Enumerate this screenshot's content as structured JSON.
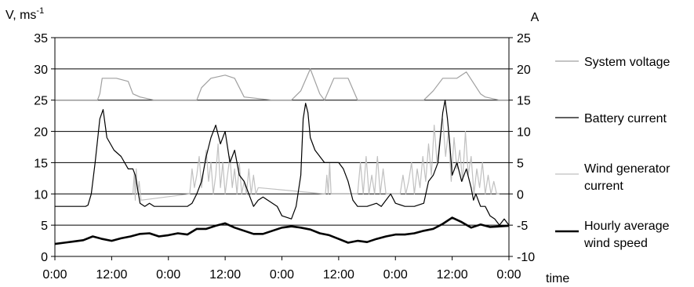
{
  "chart_data": {
    "type": "line",
    "title": "",
    "left_axis_label": "V, ms-1",
    "left_axis_label_main": "V, ms",
    "left_axis_label_sup": "-1",
    "right_axis_label": "A",
    "xlabel": "time",
    "left_ylim": [
      0,
      35
    ],
    "left_yticks": [
      "0",
      "5",
      "10",
      "15",
      "20",
      "25",
      "30",
      "35"
    ],
    "right_ylim": [
      -10,
      25
    ],
    "right_yticks": [
      "-10",
      "-5",
      "0",
      "5",
      "10",
      "15",
      "20",
      "25"
    ],
    "xlim_hours": [
      0,
      96
    ],
    "x_tick_labels": [
      "0:00",
      "12:00",
      "0:00",
      "12:00",
      "0:00",
      "12:00",
      "0:00",
      "12:00",
      "0:00"
    ],
    "grid": "horizontal",
    "legend_position": "right",
    "legend": [
      {
        "label_lines": [
          "System voltage"
        ],
        "color": "#a0a0a0",
        "width": 1.2
      },
      {
        "label_lines": [
          "Battery current"
        ],
        "color": "#000000",
        "width": 1.2
      },
      {
        "label_lines": [
          "Wind generator",
          "current"
        ],
        "color": "#c0c0c0",
        "width": 1.2
      },
      {
        "label_lines": [
          "Hourly average",
          "wind speed"
        ],
        "color": "#000000",
        "width": 2.6
      }
    ],
    "series": [
      {
        "name": "System voltage",
        "axis": "left",
        "color": "#a0a0a0",
        "x": [
          0,
          9,
          9.5,
          10,
          13,
          15.5,
          16.5,
          18,
          21,
          24,
          30,
          31,
          33,
          36,
          38,
          40,
          46,
          50,
          52,
          54,
          56,
          57,
          59,
          62,
          64,
          72,
          75,
          78,
          80,
          82,
          85,
          87,
          90,
          91,
          94,
          96
        ],
        "y": [
          25,
          25,
          26,
          28.5,
          28.5,
          28,
          26,
          25.5,
          25,
          25,
          25,
          27,
          28.5,
          29,
          28.5,
          25.5,
          25,
          25,
          26.5,
          30,
          26,
          25,
          28.5,
          28.5,
          25,
          25,
          25,
          25,
          26.5,
          28.5,
          28.5,
          29.5,
          26,
          25.5,
          25,
          25
        ]
      },
      {
        "name": "Battery current",
        "axis": "right",
        "color": "#000000",
        "x": [
          0,
          6,
          6.5,
          7,
          7.7,
          8.5,
          9.5,
          10.2,
          11,
          12.5,
          14,
          15.5,
          16.5,
          17,
          18,
          19,
          20,
          21,
          24,
          28,
          29,
          30,
          31,
          32,
          33,
          34,
          35,
          36,
          37,
          38,
          39,
          40,
          42,
          43,
          44,
          45,
          47,
          48,
          50,
          51,
          52,
          52.5,
          53,
          53.5,
          54,
          55,
          57,
          58.5,
          60,
          61,
          62,
          63,
          64,
          66,
          68,
          69,
          70,
          71,
          72,
          74,
          76,
          78,
          79,
          80,
          81,
          82,
          82.5,
          83,
          83.5,
          84,
          85,
          86,
          87,
          88,
          88.5,
          89,
          90,
          91,
          92,
          93,
          94,
          95,
          96
        ],
        "y": [
          -2,
          -2,
          -2,
          -1.8,
          0,
          5,
          12,
          13.5,
          9,
          7,
          6,
          4,
          4,
          3,
          -1.5,
          -2,
          -1.5,
          -2,
          -2,
          -2,
          -1.5,
          0,
          2,
          6,
          9,
          11,
          8,
          10,
          5,
          7,
          3,
          2,
          -2,
          -1,
          -0.5,
          -1,
          -2,
          -3.5,
          -4,
          -2,
          3,
          12,
          14.5,
          13,
          9,
          7,
          5,
          5,
          5,
          4,
          2,
          -1,
          -2,
          -2,
          -1.5,
          -2,
          -1,
          0,
          -1.5,
          -2,
          -2,
          -1.5,
          2,
          3,
          5,
          13,
          15,
          12,
          8,
          3,
          5,
          2,
          4,
          1,
          -1,
          0,
          -2,
          -2,
          -3.5,
          -4,
          -5,
          -4,
          -5
        ]
      },
      {
        "name": "Wind generator current",
        "axis": "right",
        "color": "#c0c0c0",
        "x": [
          16.5,
          16.8,
          17,
          17.2,
          17.5,
          17.8,
          18.2,
          28.5,
          29,
          29.5,
          30,
          30.5,
          31,
          31.5,
          32,
          32.5,
          33,
          33.5,
          34,
          34.5,
          35,
          35.5,
          36,
          36.5,
          37,
          37.5,
          38,
          38.5,
          39,
          39.5,
          40,
          40.5,
          41,
          41.5,
          42,
          42.5,
          43,
          57.2,
          57.5,
          57.8,
          58.1,
          58.4,
          64,
          64.6,
          65.2,
          65.8,
          66.4,
          67,
          67.6,
          68.2,
          68.8,
          69.4,
          70,
          73,
          73.6,
          74.2,
          74.8,
          75.4,
          76,
          76.6,
          77.2,
          77.8,
          78.4,
          79,
          79.6,
          80.2,
          80.8,
          81.4,
          82,
          82.6,
          83.2,
          83.8,
          84.4,
          85,
          85.6,
          86.2,
          86.8,
          87.4,
          88,
          88.6,
          89.2,
          89.8,
          90.4,
          91,
          91.6,
          92.2,
          92.8,
          93.4,
          94
        ],
        "y": [
          0,
          3.5,
          -1,
          4,
          0,
          2,
          -1,
          0,
          4,
          1,
          3,
          6,
          1,
          4,
          7,
          2,
          5,
          0,
          3,
          8,
          1,
          5,
          0,
          3,
          6,
          1,
          4,
          0,
          5,
          0,
          2,
          0,
          4,
          0,
          3,
          0,
          1,
          0,
          3,
          0,
          5,
          0,
          0,
          5,
          0,
          6,
          0,
          3,
          0,
          6,
          0,
          4,
          0,
          0,
          3,
          0,
          2,
          5,
          0,
          4,
          1,
          6,
          2,
          8,
          3,
          11,
          5,
          9,
          12,
          6,
          10,
          2,
          9,
          4,
          7,
          2,
          10,
          3,
          6,
          0,
          4,
          1,
          5,
          0,
          3,
          0,
          2,
          0,
          0
        ]
      },
      {
        "name": "Hourly average wind speed",
        "axis": "left",
        "color": "#000000",
        "x": [
          0,
          2,
          4,
          6,
          8,
          10,
          12,
          14,
          16,
          18,
          20,
          22,
          24,
          26,
          28,
          30,
          32,
          34,
          36,
          38,
          40,
          42,
          44,
          46,
          48,
          50,
          52,
          54,
          56,
          58,
          60,
          62,
          64,
          66,
          68,
          70,
          72,
          74,
          76,
          78,
          80,
          82,
          84,
          86,
          88,
          90,
          92,
          94,
          96
        ],
        "y": [
          2,
          2.2,
          2.4,
          2.6,
          3.2,
          2.8,
          2.5,
          2.9,
          3.2,
          3.6,
          3.7,
          3.2,
          3.4,
          3.7,
          3.5,
          4.4,
          4.4,
          4.9,
          5.3,
          4.6,
          4.1,
          3.6,
          3.6,
          4.1,
          4.6,
          4.8,
          4.6,
          4.3,
          3.7,
          3.4,
          2.8,
          2.2,
          2.5,
          2.3,
          2.8,
          3.2,
          3.5,
          3.5,
          3.7,
          4.1,
          4.4,
          5.2,
          6.2,
          5.5,
          4.6,
          5.1,
          4.7,
          4.8,
          4.9
        ]
      }
    ]
  }
}
